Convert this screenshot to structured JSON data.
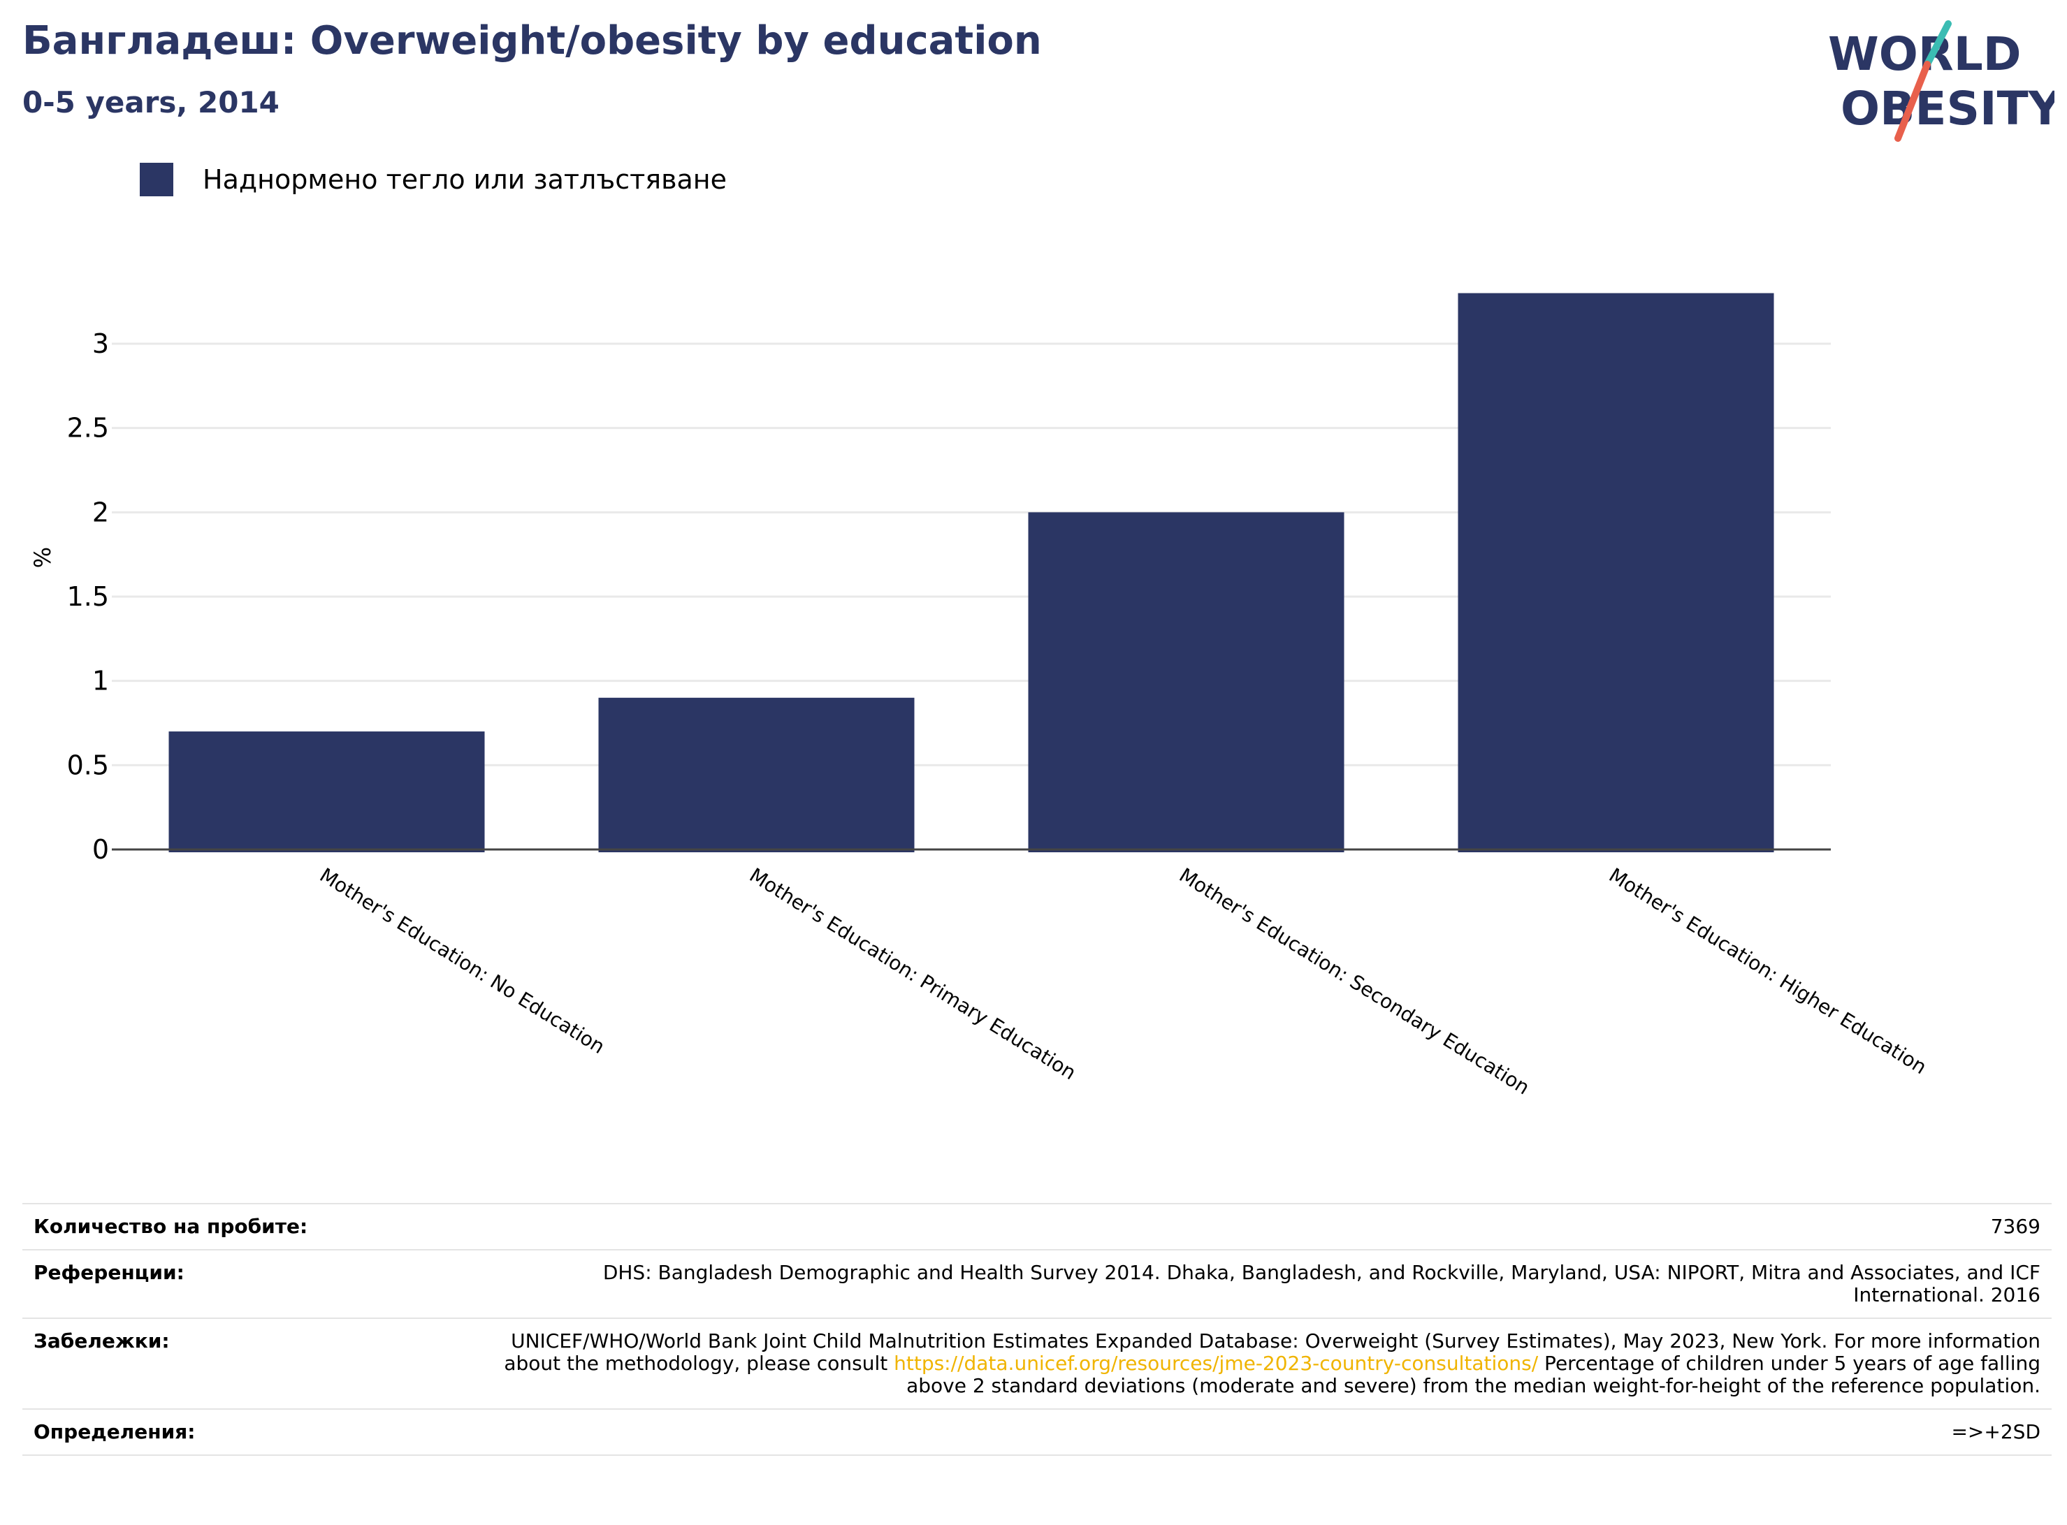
{
  "header": {
    "title": "Бангладеш: Overweight/obesity by education",
    "subtitle": "0-5 years, 2014"
  },
  "logo": {
    "line1": "WORLD",
    "line2": "OBESITY",
    "colors": {
      "text": "#2b3664",
      "stroke_top": "#3bbcb3",
      "stroke_bottom": "#e8604c"
    }
  },
  "legend": {
    "label": "Наднормено тегло или затлъстяване",
    "color": "#2b3664"
  },
  "chart_data": {
    "type": "bar",
    "categories": [
      "Mother's Education: No Education",
      "Mother's Education: Primary Education",
      "Mother's Education: Secondary Education",
      "Mother's Education: Higher Education"
    ],
    "series": [
      {
        "name": "Наднормено тегло или затлъстяване",
        "values": [
          0.7,
          0.9,
          2.0,
          3.3
        ],
        "color": "#2b3664"
      }
    ],
    "ylabel": "%",
    "xlabel": "",
    "ylim": [
      0,
      3.3
    ],
    "yticks": [
      0,
      0.5,
      1,
      1.5,
      2,
      2.5,
      3
    ],
    "ytick_labels": [
      "0",
      "0.5",
      "1",
      "1.5",
      "2",
      "2.5",
      "3"
    ],
    "grid": true,
    "legend_position": "top-left"
  },
  "info": {
    "rows": [
      {
        "label": "Количество на пробите:",
        "value": "7369"
      },
      {
        "label": "Референции:",
        "value": "DHS: Bangladesh Demographic and Health Survey 2014. Dhaka, Bangladesh, and Rockville, Maryland, USA: NIPORT, Mitra and Associates, and ICF International. 2016"
      },
      {
        "label": "Забележки:",
        "value_before": "UNICEF/WHO/World Bank Joint Child Malnutrition Estimates Expanded Database: Overweight (Survey Estimates), May 2023, New York. For more information about the methodology, please consult ",
        "link": "https://data.unicef.org/resources/jme-2023-country-consultations/",
        "value_after": " Percentage of children under 5 years of age falling above 2 standard deviations (moderate and severe) from the median weight-for-height of the reference population."
      },
      {
        "label": "Определения:",
        "value": "=>+2SD"
      }
    ]
  }
}
